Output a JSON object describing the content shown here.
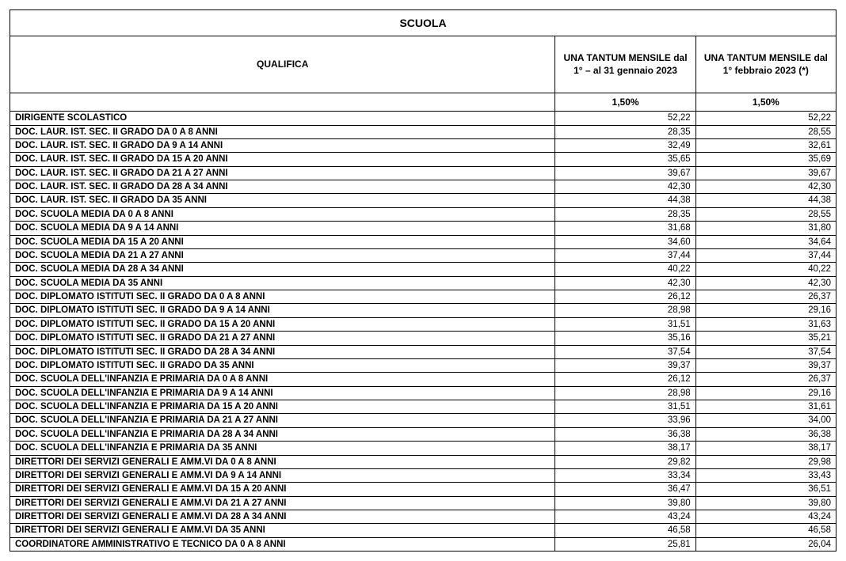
{
  "title": "SCUOLA",
  "headers": {
    "qualifica": "QUALIFICA",
    "col1": "UNA TANTUM MENSILE dal 1° – al 31 gennaio 2023",
    "col2": "UNA TANTUM MENSILE dal 1° febbraio 2023 (*)"
  },
  "percent": {
    "col1": "1,50%",
    "col2": "1,50%"
  },
  "rows": [
    {
      "label": "DIRIGENTE SCOLASTICO",
      "v1": "52,22",
      "v2": "52,22"
    },
    {
      "label": "DOC. LAUR. IST. SEC. II GRADO DA 0 A 8 ANNI",
      "v1": "28,35",
      "v2": "28,55"
    },
    {
      "label": "DOC. LAUR. IST. SEC. II GRADO DA 9 A 14 ANNI",
      "v1": "32,49",
      "v2": "32,61"
    },
    {
      "label": "DOC. LAUR. IST. SEC. II GRADO DA 15 A 20 ANNI",
      "v1": "35,65",
      "v2": "35,69"
    },
    {
      "label": "DOC. LAUR. IST. SEC. II GRADO DA 21 A 27 ANNI",
      "v1": "39,67",
      "v2": "39,67"
    },
    {
      "label": "DOC. LAUR. IST. SEC. II GRADO DA 28 A 34 ANNI",
      "v1": "42,30",
      "v2": "42,30"
    },
    {
      "label": "DOC. LAUR. IST. SEC. II GRADO DA 35 ANNI",
      "v1": "44,38",
      "v2": "44,38"
    },
    {
      "label": "DOC. SCUOLA MEDIA DA 0 A 8 ANNI",
      "v1": "28,35",
      "v2": "28,55"
    },
    {
      "label": "DOC. SCUOLA MEDIA DA 9 A 14 ANNI",
      "v1": "31,68",
      "v2": "31,80"
    },
    {
      "label": "DOC. SCUOLA MEDIA DA 15  A 20 ANNI",
      "v1": "34,60",
      "v2": "34,64"
    },
    {
      "label": "DOC. SCUOLA MEDIA DA 21  A 27 ANNI",
      "v1": "37,44",
      "v2": "37,44"
    },
    {
      "label": "DOC. SCUOLA MEDIA DA 28  A 34 ANNI",
      "v1": "40,22",
      "v2": "40,22"
    },
    {
      "label": "DOC. SCUOLA MEDIA DA 35 ANNI",
      "v1": "42,30",
      "v2": "42,30"
    },
    {
      "label": "DOC. DIPLOMATO ISTITUTI SEC. II GRADO  DA 0 A 8 ANNI",
      "v1": "26,12",
      "v2": "26,37"
    },
    {
      "label": "DOC. DIPLOMATO ISTITUTI SEC. II GRADO  DA 9 A 14 ANNI",
      "v1": "28,98",
      "v2": "29,16"
    },
    {
      "label": "DOC. DIPLOMATO ISTITUTI SEC. II GRADO  DA 15 A 20 ANNI",
      "v1": "31,51",
      "v2": "31,63"
    },
    {
      "label": "DOC. DIPLOMATO ISTITUTI SEC. II GRADO  DA 21 A 27 ANNI",
      "v1": "35,16",
      "v2": "35,21"
    },
    {
      "label": "DOC. DIPLOMATO ISTITUTI SEC. II GRADO  DA 28 A 34 ANNI",
      "v1": "37,54",
      "v2": "37,54"
    },
    {
      "label": "DOC. DIPLOMATO ISTITUTI SEC. II GRADO  DA 35 ANNI",
      "v1": "39,37",
      "v2": "39,37"
    },
    {
      "label": "DOC. SCUOLA DELL'INFANZIA E PRIMARIA  DA 0 A 8 ANNI",
      "v1": "26,12",
      "v2": "26,37"
    },
    {
      "label": "DOC. SCUOLA DELL'INFANZIA E PRIMARIA  DA 9 A 14 ANNI",
      "v1": "28,98",
      "v2": "29,16"
    },
    {
      "label": "DOC. SCUOLA DELL'INFANZIA E PRIMARIA  DA 15 A 20 ANNI",
      "v1": "31,51",
      "v2": "31,61"
    },
    {
      "label": "DOC. SCUOLA DELL'INFANZIA E PRIMARIA  DA 21 A 27 ANNI",
      "v1": "33,96",
      "v2": "34,00"
    },
    {
      "label": "DOC. SCUOLA DELL'INFANZIA E PRIMARIA  DA 28 A 34 ANNI",
      "v1": "36,38",
      "v2": "36,38"
    },
    {
      "label": "DOC. SCUOLA DELL'INFANZIA E PRIMARIA  DA 35 ANNI",
      "v1": "38,17",
      "v2": "38,17"
    },
    {
      "label": "DIRETTORI DEI SERVIZI GENERALI E AMM.VI  DA 0 A 8 ANNI",
      "v1": "29,82",
      "v2": "29,98"
    },
    {
      "label": "DIRETTORI DEI SERVIZI GENERALI E AMM.VI  DA 9 A 14 ANNI",
      "v1": "33,34",
      "v2": "33,43"
    },
    {
      "label": "DIRETTORI DEI SERVIZI GENERALI E AMM.VI  DA 15 A 20 ANNI",
      "v1": "36,47",
      "v2": "36,51"
    },
    {
      "label": "DIRETTORI DEI SERVIZI GENERALI E AMM.VI  DA 21 A 27 ANNI",
      "v1": "39,80",
      "v2": "39,80"
    },
    {
      "label": "DIRETTORI DEI SERVIZI GENERALI E AMM.VI  DA 28 A 34 ANNI",
      "v1": "43,24",
      "v2": "43,24"
    },
    {
      "label": "DIRETTORI DEI SERVIZI GENERALI E AMM.VI  DA 35 ANNI",
      "v1": "46,58",
      "v2": "46,58"
    },
    {
      "label": "COORDINATORE AMMINISTRATIVO E TECNICO DA 0 A 8 ANNI",
      "v1": "25,81",
      "v2": "26,04"
    }
  ]
}
